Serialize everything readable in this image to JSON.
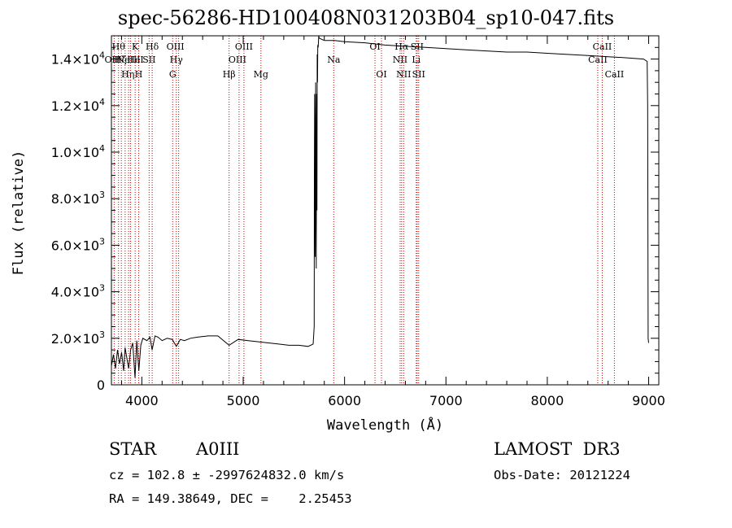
{
  "chart_data": {
    "type": "line",
    "title": "spec-56286-HD100408N031203B04_sp10-047.fits",
    "xlabel": "Wavelength (Å)",
    "ylabel": "Flux (relative)",
    "xlim": [
      3700,
      9100
    ],
    "ylim": [
      0,
      15000
    ],
    "xticks": [
      4000,
      5000,
      6000,
      7000,
      8000,
      9000
    ],
    "xtick_labels": [
      "4000",
      "5000",
      "6000",
      "7000",
      "8000",
      "9000"
    ],
    "yticks": [
      {
        "value": 0,
        "base": "0",
        "exp": ""
      },
      {
        "value": 2000,
        "base": "2.0×10",
        "exp": "3"
      },
      {
        "value": 4000,
        "base": "4.0×10",
        "exp": "3"
      },
      {
        "value": 6000,
        "base": "6.0×10",
        "exp": "3"
      },
      {
        "value": 8000,
        "base": "8.0×10",
        "exp": "3"
      },
      {
        "value": 10000,
        "base": "1.0×10",
        "exp": "4"
      },
      {
        "value": 12000,
        "base": "1.2×10",
        "exp": "4"
      },
      {
        "value": 14000,
        "base": "1.4×10",
        "exp": "4"
      }
    ],
    "series": [
      {
        "name": "flux",
        "x": [
          3700,
          3720,
          3740,
          3760,
          3780,
          3800,
          3820,
          3835,
          3850,
          3870,
          3889,
          3910,
          3933,
          3950,
          3970,
          3990,
          4010,
          4050,
          4080,
          4101,
          4130,
          4160,
          4200,
          4250,
          4300,
          4340,
          4380,
          4420,
          4480,
          4550,
          4650,
          4750,
          4861,
          4950,
          5050,
          5150,
          5250,
          5350,
          5450,
          5550,
          5640,
          5690,
          5700,
          5702,
          5705,
          5710,
          5715,
          5720,
          5725,
          5728,
          5730,
          5733,
          5736,
          5740,
          5745,
          5750,
          5800,
          5900,
          6000,
          6200,
          6400,
          6600,
          6800,
          7000,
          7200,
          7400,
          7600,
          7800,
          8000,
          8200,
          8400,
          8600,
          8800,
          8950,
          8985,
          8990,
          8995,
          9000
        ],
        "y": [
          800,
          1300,
          700,
          1500,
          900,
          1400,
          600,
          1600,
          1200,
          700,
          1500,
          1800,
          300,
          1900,
          600,
          1700,
          2000,
          1900,
          2050,
          1500,
          2100,
          2050,
          1900,
          2000,
          1950,
          1650,
          1950,
          1900,
          2000,
          2050,
          2100,
          2100,
          1700,
          1950,
          1900,
          1850,
          1800,
          1750,
          1700,
          1700,
          1650,
          1750,
          2500,
          9000,
          12500,
          5500,
          13000,
          5000,
          12500,
          7500,
          14200,
          13000,
          14600,
          14500,
          15000,
          14900,
          14800,
          14800,
          14750,
          14700,
          14600,
          14550,
          14500,
          14450,
          14400,
          14350,
          14300,
          14300,
          14250,
          14200,
          14150,
          14100,
          14050,
          14000,
          13900,
          12000,
          2000,
          1800
        ]
      }
    ],
    "line_markers": [
      {
        "wl": 3727,
        "label": "OII",
        "row": 1,
        "dx": -3
      },
      {
        "wl": 3770,
        "label": "Hθ",
        "row": 0,
        "dx": 0
      },
      {
        "wl": 3798,
        "label": "Hη",
        "row": 2,
        "dx": 8
      },
      {
        "wl": 3835,
        "label": "Hζ",
        "row": 1,
        "dx": -6
      },
      {
        "wl": 3869,
        "label": "NeIII",
        "row": 1,
        "dx": 0
      },
      {
        "wl": 3889,
        "label": "HeI",
        "row": 1,
        "dx": 6
      },
      {
        "wl": 3934,
        "label": "K",
        "row": 0,
        "dx": 0
      },
      {
        "wl": 3969,
        "label": "H",
        "row": 2,
        "dx": 0
      },
      {
        "wl": 4072,
        "label": "SII",
        "row": 1,
        "dx": 0
      },
      {
        "wl": 4102,
        "label": "Hδ",
        "row": 0,
        "dx": 0
      },
      {
        "wl": 4304,
        "label": "G",
        "row": 2,
        "dx": 0
      },
      {
        "wl": 4340,
        "label": "Hγ",
        "row": 1,
        "dx": 0
      },
      {
        "wl": 4363,
        "label": "OIII",
        "row": 0,
        "dx": -4
      },
      {
        "wl": 4861,
        "label": "Hβ",
        "row": 2,
        "dx": 0
      },
      {
        "wl": 4959,
        "label": "OIII",
        "row": 1,
        "dx": -2
      },
      {
        "wl": 5007,
        "label": "OIII",
        "row": 0,
        "dx": 0
      },
      {
        "wl": 5175,
        "label": "Mg",
        "row": 2,
        "dx": 0
      },
      {
        "wl": 5893,
        "label": "Na",
        "row": 1,
        "dx": 0
      },
      {
        "wl": 6300,
        "label": "OI",
        "row": 0,
        "dx": 0
      },
      {
        "wl": 6364,
        "label": "OI",
        "row": 2,
        "dx": 0
      },
      {
        "wl": 6548,
        "label": "NII",
        "row": 1,
        "dx": 0
      },
      {
        "wl": 6563,
        "label": "Hα",
        "row": 0,
        "dx": 0
      },
      {
        "wl": 6583,
        "label": "NII",
        "row": 2,
        "dx": 0
      },
      {
        "wl": 6707,
        "label": "Li",
        "row": 1,
        "dx": 0
      },
      {
        "wl": 6716,
        "label": "SII",
        "row": 0,
        "dx": 0
      },
      {
        "wl": 6731,
        "label": "SII",
        "row": 2,
        "dx": 0
      },
      {
        "wl": 8498,
        "label": "CaII",
        "row": 1,
        "dx": 0
      },
      {
        "wl": 8542,
        "label": "CaII",
        "row": 0,
        "dx": 0
      },
      {
        "wl": 8662,
        "label": "CaII",
        "row": 2,
        "dx": 0
      }
    ],
    "marker_color": "#c80000"
  },
  "info": {
    "object_class": "STAR",
    "subclass": "A0III",
    "survey": "LAMOST  DR3",
    "cz": "cz = 102.8 ± -2997624832.0 km/s",
    "obs_date": "Obs-Date: 20121224",
    "radec": "RA = 149.38649, DEC =    2.25453"
  }
}
